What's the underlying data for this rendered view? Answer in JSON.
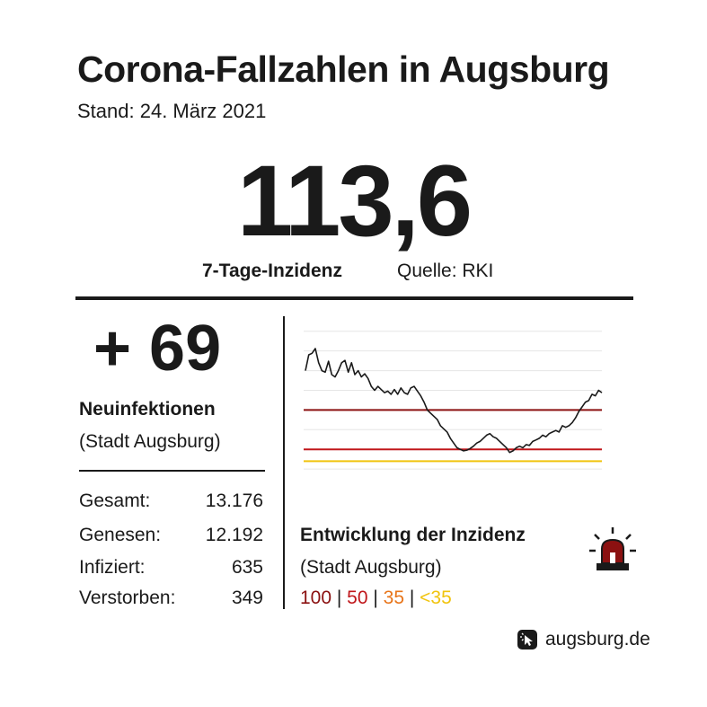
{
  "header": {
    "title": "Corona-Fallzahlen in Augsburg",
    "date": "Stand: 24. März 2021"
  },
  "incidence": {
    "value": "113,6",
    "label": "7-Tage-Inzidenz",
    "source": "Quelle: RKI"
  },
  "new_infections": {
    "value": "+ 69",
    "label": "Neuinfektionen",
    "sub": "(Stadt Augsburg)"
  },
  "stats": [
    {
      "label": "Gesamt:",
      "value": "13.176"
    },
    {
      "label": "Genesen:",
      "value": "12.192"
    },
    {
      "label": "Infiziert:",
      "value": "635"
    },
    {
      "label": "Verstorben:",
      "value": "349"
    }
  ],
  "chart_section": {
    "title": "Entwicklung der Inzidenz",
    "sub": "(Stadt Augsburg)",
    "legend": [
      {
        "text": "100",
        "color": "#8b1111"
      },
      {
        "text": "50",
        "color": "#c0171b"
      },
      {
        "text": "35",
        "color": "#e8751a"
      },
      {
        "text": "<35",
        "color": "#f1c40f"
      }
    ]
  },
  "colors": {
    "threshold_100": "#8b1111",
    "threshold_50": "#c0171b",
    "threshold_35": "#f1c40f",
    "line": "#1a1a1a",
    "grid": "#e6e6e6",
    "siren": "#8b1111"
  },
  "chart_data": {
    "type": "line",
    "title": "",
    "xlabel": "",
    "ylabel": "",
    "ylim": [
      0,
      210
    ],
    "grid": true,
    "thresholds": [
      100,
      50,
      35
    ],
    "series": [
      {
        "values": [
          150,
          170,
          172,
          178,
          160,
          150,
          148,
          162,
          145,
          142,
          150,
          160,
          163,
          148,
          160,
          145,
          150,
          142,
          146,
          140,
          130,
          125,
          130,
          126,
          122,
          124,
          120,
          126,
          120,
          128,
          122,
          120,
          128,
          130,
          124,
          118,
          110,
          100,
          96,
          92,
          88,
          80,
          76,
          72,
          64,
          58,
          52,
          50,
          48,
          49,
          51,
          54,
          58,
          60,
          64,
          68,
          70,
          66,
          64,
          60,
          56,
          52,
          46,
          48,
          52,
          54,
          52,
          56,
          55,
          60,
          62,
          64,
          68,
          66,
          70,
          72,
          74,
          72,
          80,
          78,
          80,
          84,
          90,
          98,
          104,
          110,
          112,
          120,
          118,
          125,
          122
        ]
      }
    ]
  },
  "footer": {
    "text": "augsburg.de",
    "icon": "pointer-icon"
  }
}
